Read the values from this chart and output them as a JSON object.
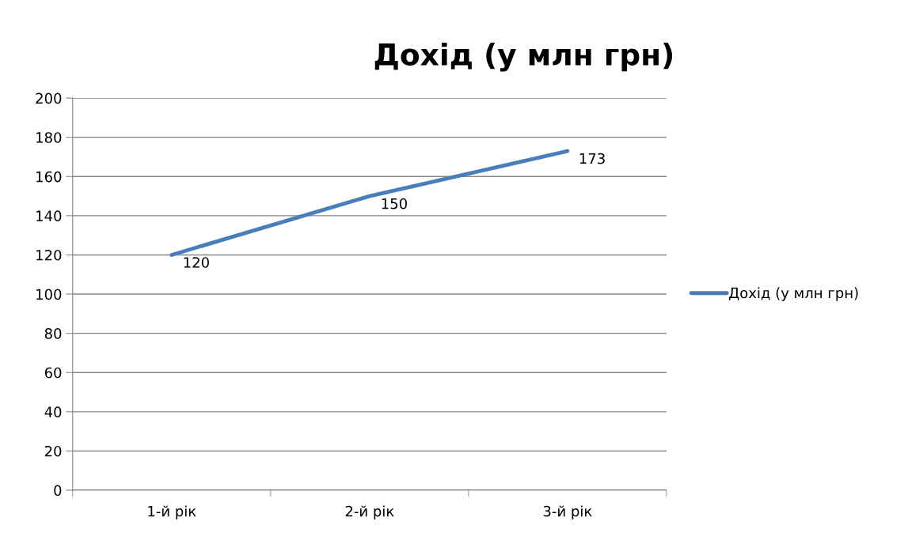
{
  "chart_data": {
    "type": "line",
    "title": "Дохід (у млн грн)",
    "categories": [
      "1-й рік",
      "2-й рік",
      "3-й рік"
    ],
    "series": [
      {
        "name": "Дохід (у млн грн)",
        "color": "#4a7ebb",
        "values": [
          120,
          150,
          173
        ]
      }
    ],
    "ylim": [
      0,
      200
    ],
    "yticks": [
      0,
      20,
      40,
      60,
      80,
      100,
      120,
      140,
      160,
      180,
      200
    ],
    "grid": "y",
    "legend": "right",
    "data_labels": true,
    "marker": "none",
    "line_style": "solid"
  }
}
